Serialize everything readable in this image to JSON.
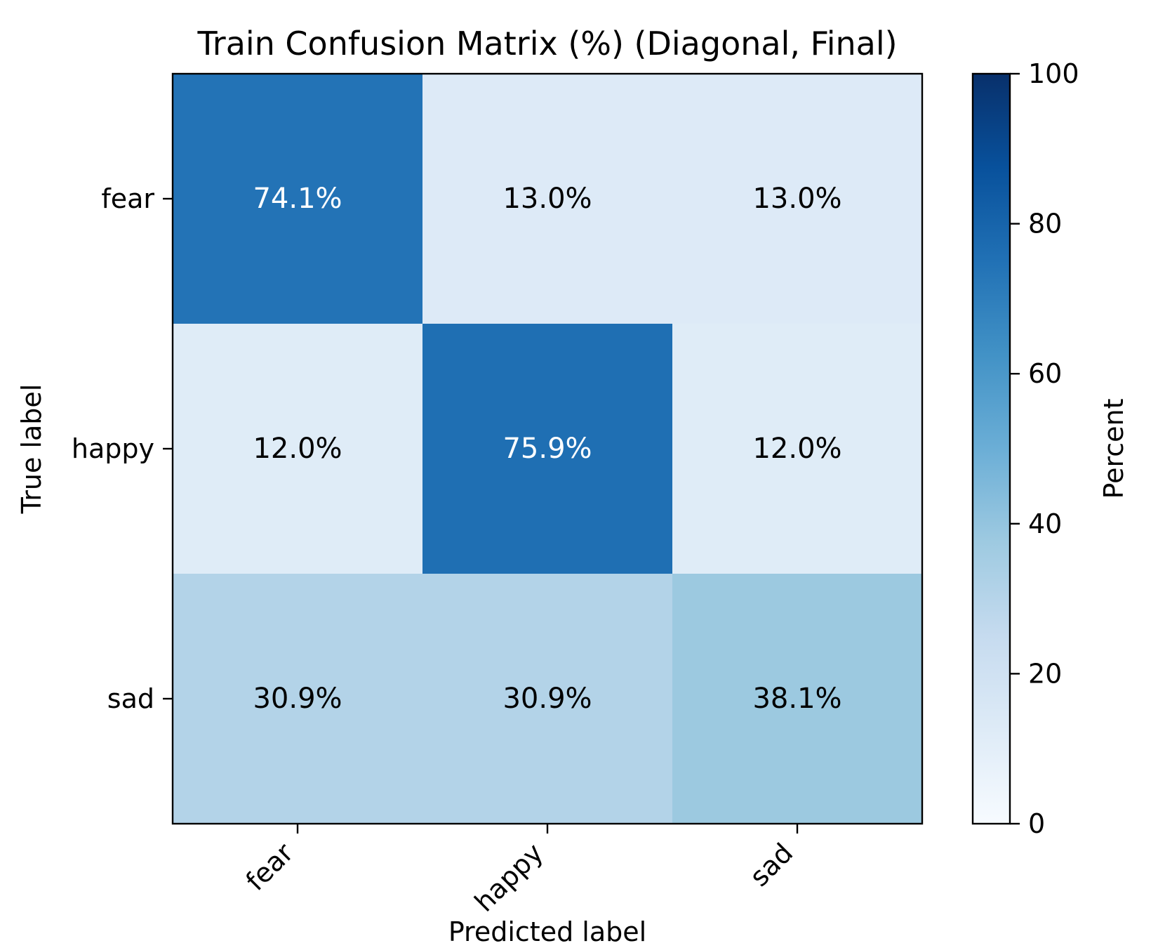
{
  "chart_data": {
    "type": "heatmap",
    "title": "Train Confusion Matrix (%) (Diagonal, Final)",
    "xlabel": "Predicted label",
    "ylabel": "True label",
    "x_categories": [
      "fear",
      "happy",
      "sad"
    ],
    "y_categories": [
      "fear",
      "happy",
      "sad"
    ],
    "values": [
      [
        74.1,
        13.0,
        13.0
      ],
      [
        12.0,
        75.9,
        12.0
      ],
      [
        30.9,
        30.9,
        38.1
      ]
    ],
    "cell_labels": [
      [
        "74.1%",
        "13.0%",
        "13.0%"
      ],
      [
        "12.0%",
        "75.9%",
        "12.0%"
      ],
      [
        "30.9%",
        "30.9%",
        "38.1%"
      ]
    ],
    "colorbar": {
      "label": "Percent",
      "range": [
        0,
        100
      ],
      "ticks": [
        "0",
        "20",
        "40",
        "60",
        "80",
        "100"
      ],
      "colormap": "Blues"
    },
    "colormap_stops": [
      "#f7fbff",
      "#deebf7",
      "#c6dbef",
      "#9ecae1",
      "#6baed6",
      "#4292c6",
      "#2171b5",
      "#08519c",
      "#08306b"
    ],
    "label_colors": {
      "light": "#ffffff",
      "dark": "#000000"
    }
  }
}
